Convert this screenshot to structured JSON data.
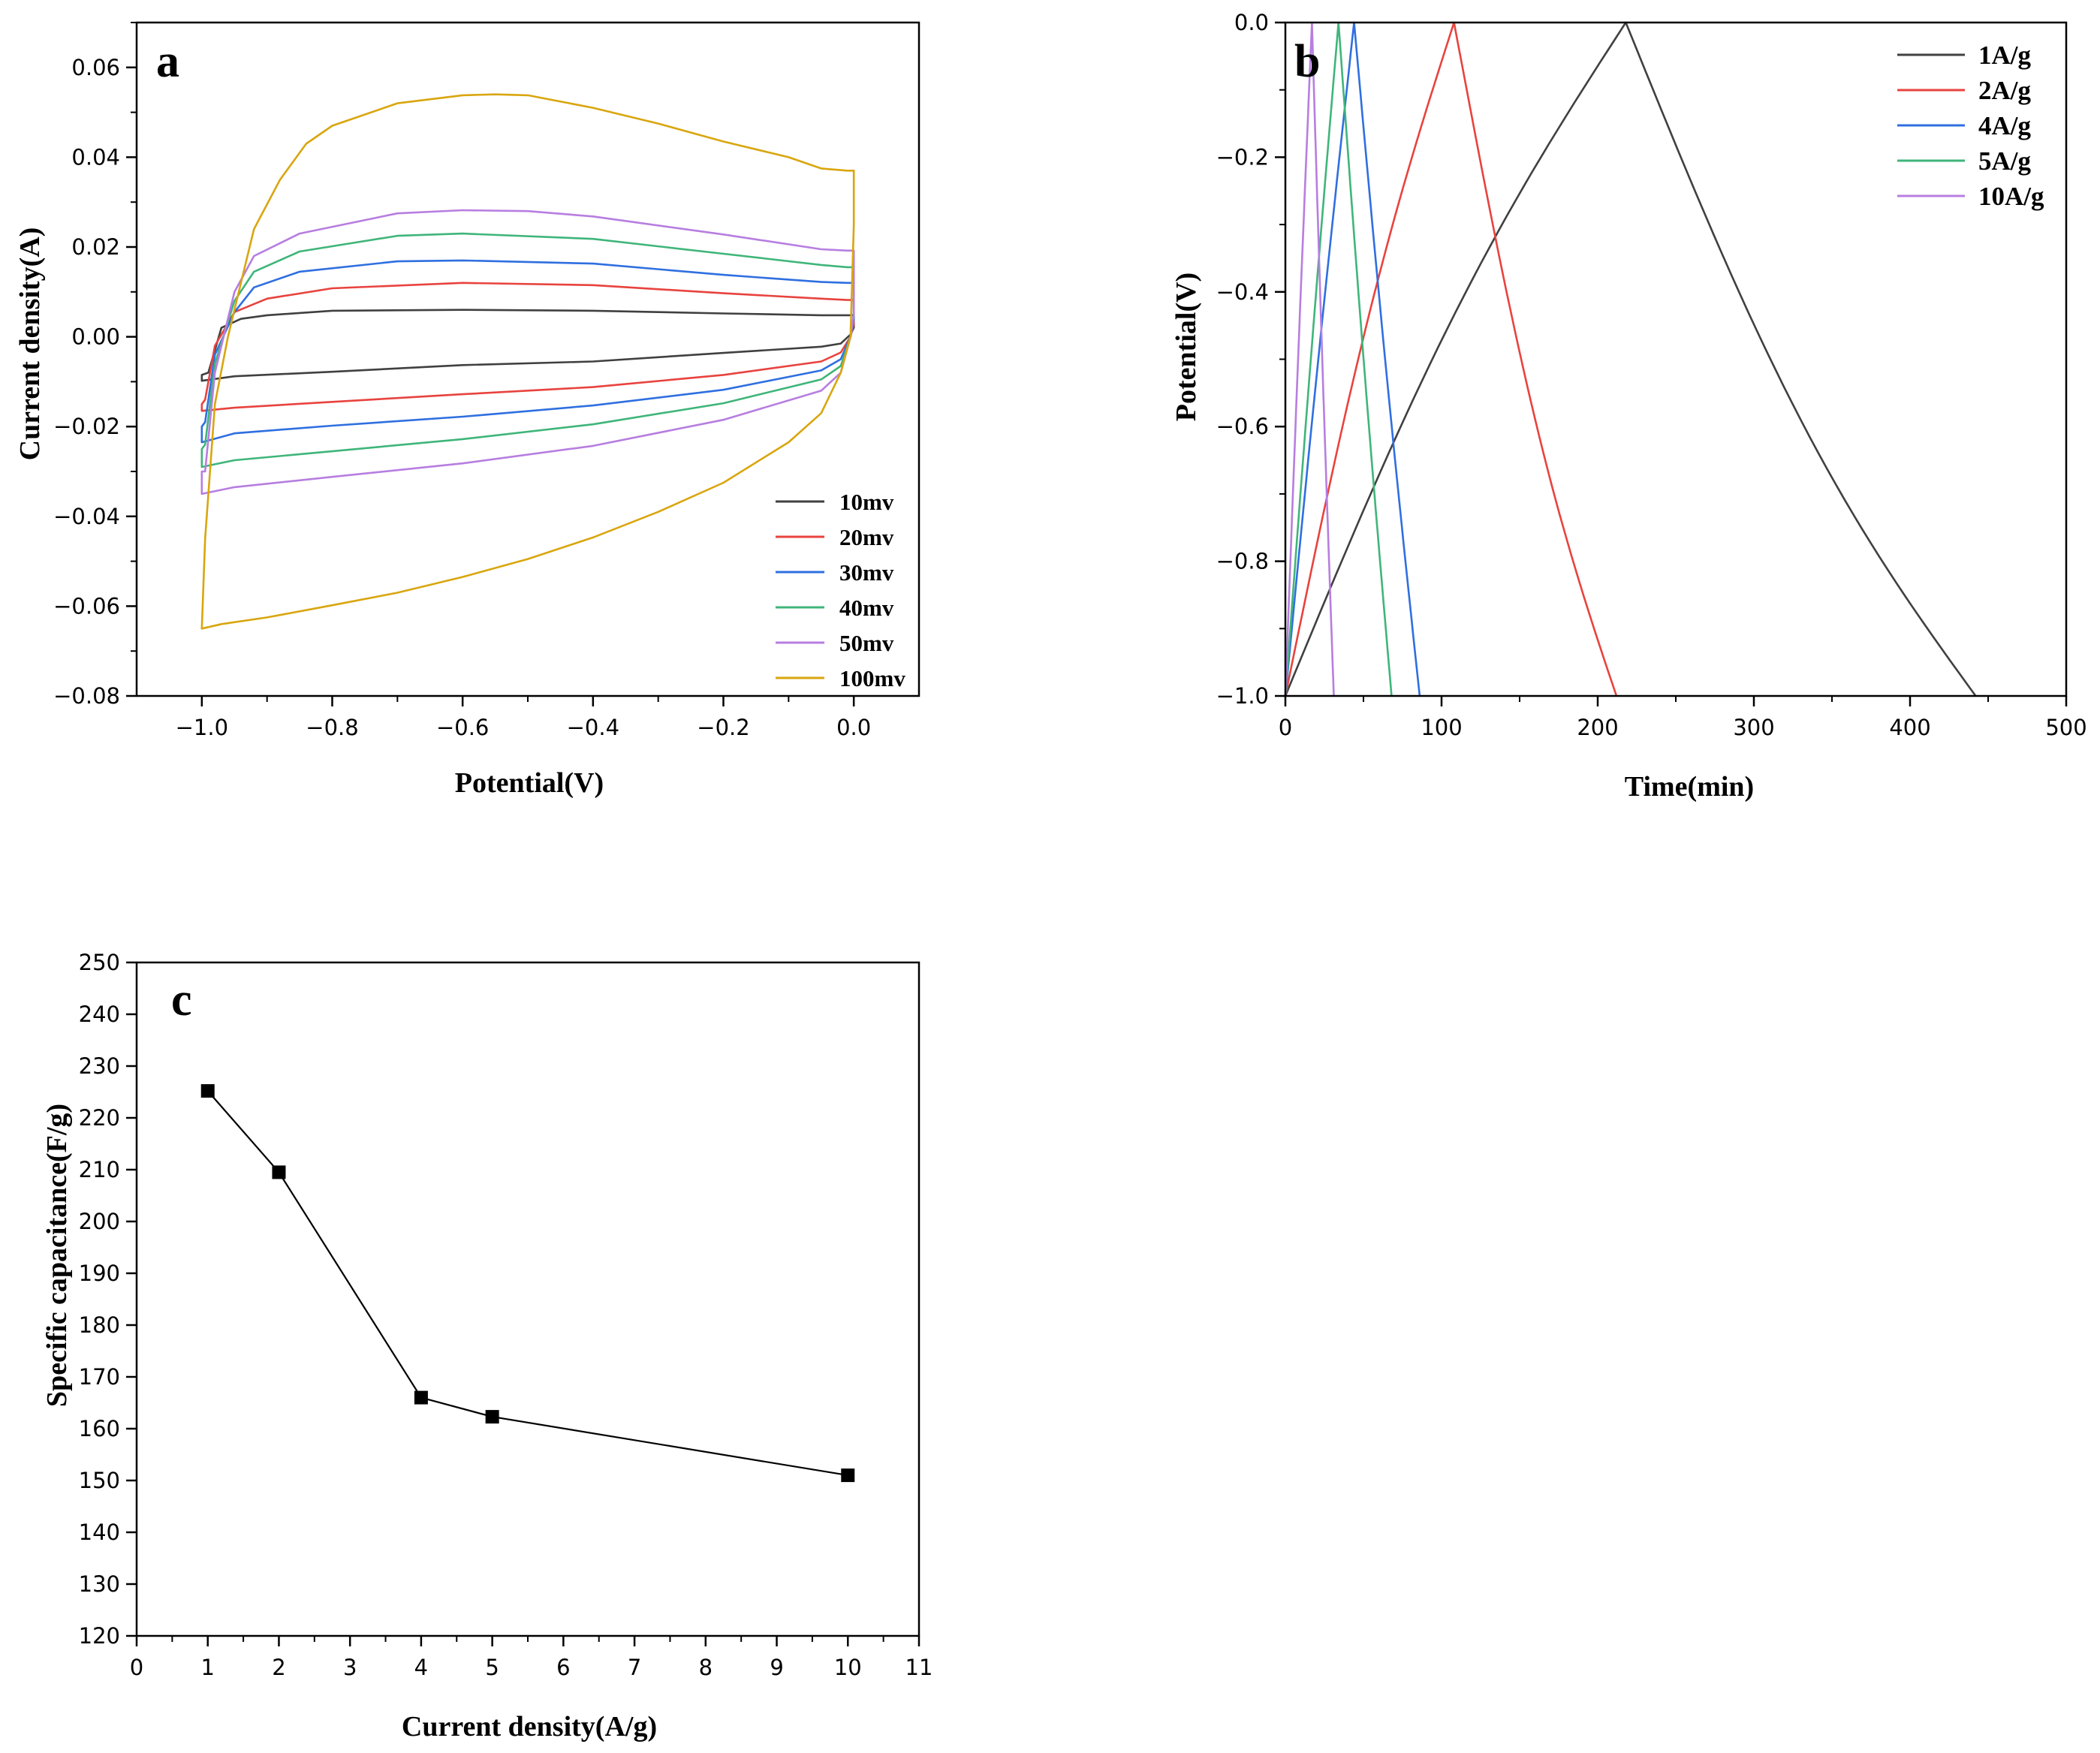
{
  "chart_data": [
    {
      "panel": "a",
      "type": "line",
      "xlabel": "Potential(V)",
      "ylabel": "Current density(A)",
      "xlim": [
        -1.1,
        0.1
      ],
      "ylim": [
        -0.08,
        0.07
      ],
      "xticks": [
        -1.0,
        -0.8,
        -0.6,
        -0.4,
        -0.2,
        0.0
      ],
      "xtick_labels": [
        "−1.0",
        "−0.8",
        "−0.6",
        "−0.4",
        "−0.2",
        "0.0"
      ],
      "yticks": [
        -0.08,
        -0.06,
        -0.04,
        -0.02,
        0.0,
        0.02,
        0.04,
        0.06
      ],
      "ytick_labels": [
        "−0.08",
        "−0.06",
        "−0.04",
        "−0.02",
        "0.00",
        "0.02",
        "0.04",
        "0.06"
      ],
      "legend_position": "lower-right",
      "series": [
        {
          "name": "10mv",
          "color": "#404040",
          "upper": [
            [
              -0.99,
              -0.008
            ],
            [
              -0.97,
              0.002
            ],
            [
              -0.94,
              0.004
            ],
            [
              -0.9,
              0.0048
            ],
            [
              -0.8,
              0.0058
            ],
            [
              -0.6,
              0.006
            ],
            [
              -0.4,
              0.0058
            ],
            [
              -0.2,
              0.0052
            ],
            [
              -0.05,
              0.0048
            ],
            [
              -0.01,
              0.0048
            ],
            [
              0.0,
              0.0048
            ],
            [
              0.0,
              0.002
            ]
          ],
          "lower": [
            [
              -0.005,
              0.0005
            ],
            [
              -0.02,
              -0.0015
            ],
            [
              -0.05,
              -0.0022
            ],
            [
              -0.2,
              -0.0036
            ],
            [
              -0.4,
              -0.0055
            ],
            [
              -0.6,
              -0.0063
            ],
            [
              -0.8,
              -0.0078
            ],
            [
              -0.95,
              -0.0088
            ],
            [
              -1.0,
              -0.0098
            ],
            [
              -1.0,
              -0.0085
            ]
          ]
        },
        {
          "name": "20mv",
          "color": "#e8433e",
          "upper": [
            [
              -0.995,
              -0.014
            ],
            [
              -0.98,
              -0.002
            ],
            [
              -0.95,
              0.0055
            ],
            [
              -0.9,
              0.0085
            ],
            [
              -0.8,
              0.0108
            ],
            [
              -0.6,
              0.012
            ],
            [
              -0.4,
              0.0115
            ],
            [
              -0.2,
              0.0097
            ],
            [
              -0.05,
              0.0085
            ],
            [
              -0.01,
              0.0082
            ],
            [
              0.0,
              0.0082
            ],
            [
              0.0,
              0.003
            ]
          ],
          "lower": [
            [
              -0.005,
              0.0
            ],
            [
              -0.02,
              -0.0035
            ],
            [
              -0.05,
              -0.0055
            ],
            [
              -0.2,
              -0.0085
            ],
            [
              -0.4,
              -0.0112
            ],
            [
              -0.6,
              -0.0128
            ],
            [
              -0.8,
              -0.0145
            ],
            [
              -0.95,
              -0.0158
            ],
            [
              -1.0,
              -0.0165
            ],
            [
              -1.0,
              -0.015
            ]
          ]
        },
        {
          "name": "30mv",
          "color": "#2f6fe0",
          "upper": [
            [
              -0.995,
              -0.019
            ],
            [
              -0.98,
              -0.004
            ],
            [
              -0.95,
              0.0055
            ],
            [
              -0.92,
              0.011
            ],
            [
              -0.85,
              0.0145
            ],
            [
              -0.7,
              0.0168
            ],
            [
              -0.6,
              0.017
            ],
            [
              -0.4,
              0.0163
            ],
            [
              -0.2,
              0.0138
            ],
            [
              -0.05,
              0.0122
            ],
            [
              -0.01,
              0.012
            ],
            [
              0.0,
              0.012
            ],
            [
              0.0,
              0.004
            ]
          ],
          "lower": [
            [
              -0.005,
              0.0
            ],
            [
              -0.02,
              -0.005
            ],
            [
              -0.05,
              -0.0075
            ],
            [
              -0.2,
              -0.0118
            ],
            [
              -0.4,
              -0.0153
            ],
            [
              -0.6,
              -0.0178
            ],
            [
              -0.8,
              -0.0198
            ],
            [
              -0.95,
              -0.0215
            ],
            [
              -1.0,
              -0.0235
            ],
            [
              -1.0,
              -0.02
            ]
          ]
        },
        {
          "name": "40mv",
          "color": "#3fb57a",
          "upper": [
            [
              -0.995,
              -0.024
            ],
            [
              -0.98,
              -0.006
            ],
            [
              -0.95,
              0.008
            ],
            [
              -0.92,
              0.0145
            ],
            [
              -0.85,
              0.019
            ],
            [
              -0.7,
              0.0225
            ],
            [
              -0.6,
              0.023
            ],
            [
              -0.4,
              0.0218
            ],
            [
              -0.2,
              0.0185
            ],
            [
              -0.05,
              0.016
            ],
            [
              -0.01,
              0.0155
            ],
            [
              0.0,
              0.0155
            ],
            [
              0.0,
              0.005
            ]
          ],
          "lower": [
            [
              -0.005,
              0.0
            ],
            [
              -0.02,
              -0.0065
            ],
            [
              -0.05,
              -0.0095
            ],
            [
              -0.2,
              -0.0148
            ],
            [
              -0.4,
              -0.0195
            ],
            [
              -0.6,
              -0.0228
            ],
            [
              -0.8,
              -0.0255
            ],
            [
              -0.95,
              -0.0275
            ],
            [
              -1.0,
              -0.029
            ],
            [
              -1.0,
              -0.025
            ]
          ]
        },
        {
          "name": "50mv",
          "color": "#b77ee0",
          "upper": [
            [
              -0.995,
              -0.03
            ],
            [
              -0.98,
              -0.008
            ],
            [
              -0.95,
              0.01
            ],
            [
              -0.92,
              0.018
            ],
            [
              -0.85,
              0.023
            ],
            [
              -0.7,
              0.0275
            ],
            [
              -0.6,
              0.0282
            ],
            [
              -0.5,
              0.028
            ],
            [
              -0.4,
              0.0268
            ],
            [
              -0.2,
              0.0228
            ],
            [
              -0.05,
              0.0195
            ],
            [
              -0.01,
              0.0192
            ],
            [
              0.0,
              0.0192
            ],
            [
              0.0,
              0.005
            ]
          ],
          "lower": [
            [
              -0.005,
              0.0
            ],
            [
              -0.02,
              -0.008
            ],
            [
              -0.05,
              -0.012
            ],
            [
              -0.2,
              -0.0185
            ],
            [
              -0.4,
              -0.0243
            ],
            [
              -0.6,
              -0.0282
            ],
            [
              -0.8,
              -0.0312
            ],
            [
              -0.95,
              -0.0335
            ],
            [
              -1.0,
              -0.035
            ],
            [
              -1.0,
              -0.03
            ]
          ]
        },
        {
          "name": "100mv",
          "color": "#d9a60f",
          "upper": [
            [
              -1.0,
              -0.065
            ],
            [
              -0.995,
              -0.045
            ],
            [
              -0.98,
              -0.015
            ],
            [
              -0.96,
              0.0
            ],
            [
              -0.94,
              0.012
            ],
            [
              -0.92,
              0.024
            ],
            [
              -0.88,
              0.035
            ],
            [
              -0.84,
              0.043
            ],
            [
              -0.8,
              0.047
            ],
            [
              -0.7,
              0.052
            ],
            [
              -0.6,
              0.0538
            ],
            [
              -0.55,
              0.054
            ],
            [
              -0.5,
              0.0538
            ],
            [
              -0.4,
              0.051
            ],
            [
              -0.3,
              0.0475
            ],
            [
              -0.2,
              0.0435
            ],
            [
              -0.1,
              0.04
            ],
            [
              -0.05,
              0.0375
            ],
            [
              -0.01,
              0.037
            ],
            [
              0.0,
              0.037
            ],
            [
              0.0,
              0.025
            ],
            [
              -0.005,
              0.0
            ]
          ],
          "lower": [
            [
              -0.005,
              0.0
            ],
            [
              -0.02,
              -0.008
            ],
            [
              -0.05,
              -0.017
            ],
            [
              -0.1,
              -0.0235
            ],
            [
              -0.2,
              -0.0325
            ],
            [
              -0.3,
              -0.039
            ],
            [
              -0.4,
              -0.0447
            ],
            [
              -0.5,
              -0.0495
            ],
            [
              -0.6,
              -0.0535
            ],
            [
              -0.7,
              -0.057
            ],
            [
              -0.8,
              -0.0598
            ],
            [
              -0.9,
              -0.0625
            ],
            [
              -0.97,
              -0.064
            ],
            [
              -1.0,
              -0.065
            ]
          ]
        }
      ]
    },
    {
      "panel": "b",
      "type": "line",
      "xlabel": "Time(min)",
      "ylabel": "Potential(V)",
      "xlim": [
        0,
        500
      ],
      "ylim": [
        -1.0,
        0.0
      ],
      "xticks": [
        0,
        100,
        200,
        300,
        400,
        500
      ],
      "xtick_labels": [
        "0",
        "100",
        "200",
        "300",
        "400",
        "500"
      ],
      "yticks": [
        -1.0,
        -0.8,
        -0.6,
        -0.4,
        -0.2,
        0.0
      ],
      "ytick_labels": [
        "−1.0",
        "−0.8",
        "−0.6",
        "−0.4",
        "−0.2",
        "0.0"
      ],
      "legend_position": "top-right",
      "series": [
        {
          "name": "1A/g",
          "color": "#404040",
          "peak_time": 218,
          "end_time": 442
        },
        {
          "name": "2A/g",
          "color": "#e8433e",
          "peak_time": 108,
          "end_time": 212
        },
        {
          "name": "4A/g",
          "color": "#2f6fe0",
          "peak_time": 44,
          "end_time": 86
        },
        {
          "name": "5A/g",
          "color": "#3fb57a",
          "peak_time": 34,
          "end_time": 68
        },
        {
          "name": "10A/g",
          "color": "#b77ee0",
          "peak_time": 17,
          "end_time": 31
        }
      ]
    },
    {
      "panel": "c",
      "type": "line",
      "xlabel": "Current density(A/g)",
      "ylabel": "Specific capacitance(F/g)",
      "xlim": [
        0,
        11
      ],
      "ylim": [
        120,
        250
      ],
      "xticks": [
        0,
        1,
        2,
        3,
        4,
        5,
        6,
        7,
        8,
        9,
        10,
        11
      ],
      "xtick_labels": [
        "0",
        "1",
        "2",
        "3",
        "4",
        "5",
        "6",
        "7",
        "8",
        "9",
        "10",
        "11"
      ],
      "yticks": [
        120,
        130,
        140,
        150,
        160,
        170,
        180,
        190,
        200,
        210,
        220,
        230,
        240,
        250
      ],
      "ytick_labels": [
        "120",
        "130",
        "140",
        "150",
        "160",
        "170",
        "180",
        "190",
        "200",
        "210",
        "220",
        "230",
        "240",
        "250"
      ],
      "x": [
        1,
        2,
        4,
        5,
        10
      ],
      "values": [
        225.2,
        209.5,
        166,
        162.3,
        151
      ],
      "color": "#000000"
    }
  ]
}
